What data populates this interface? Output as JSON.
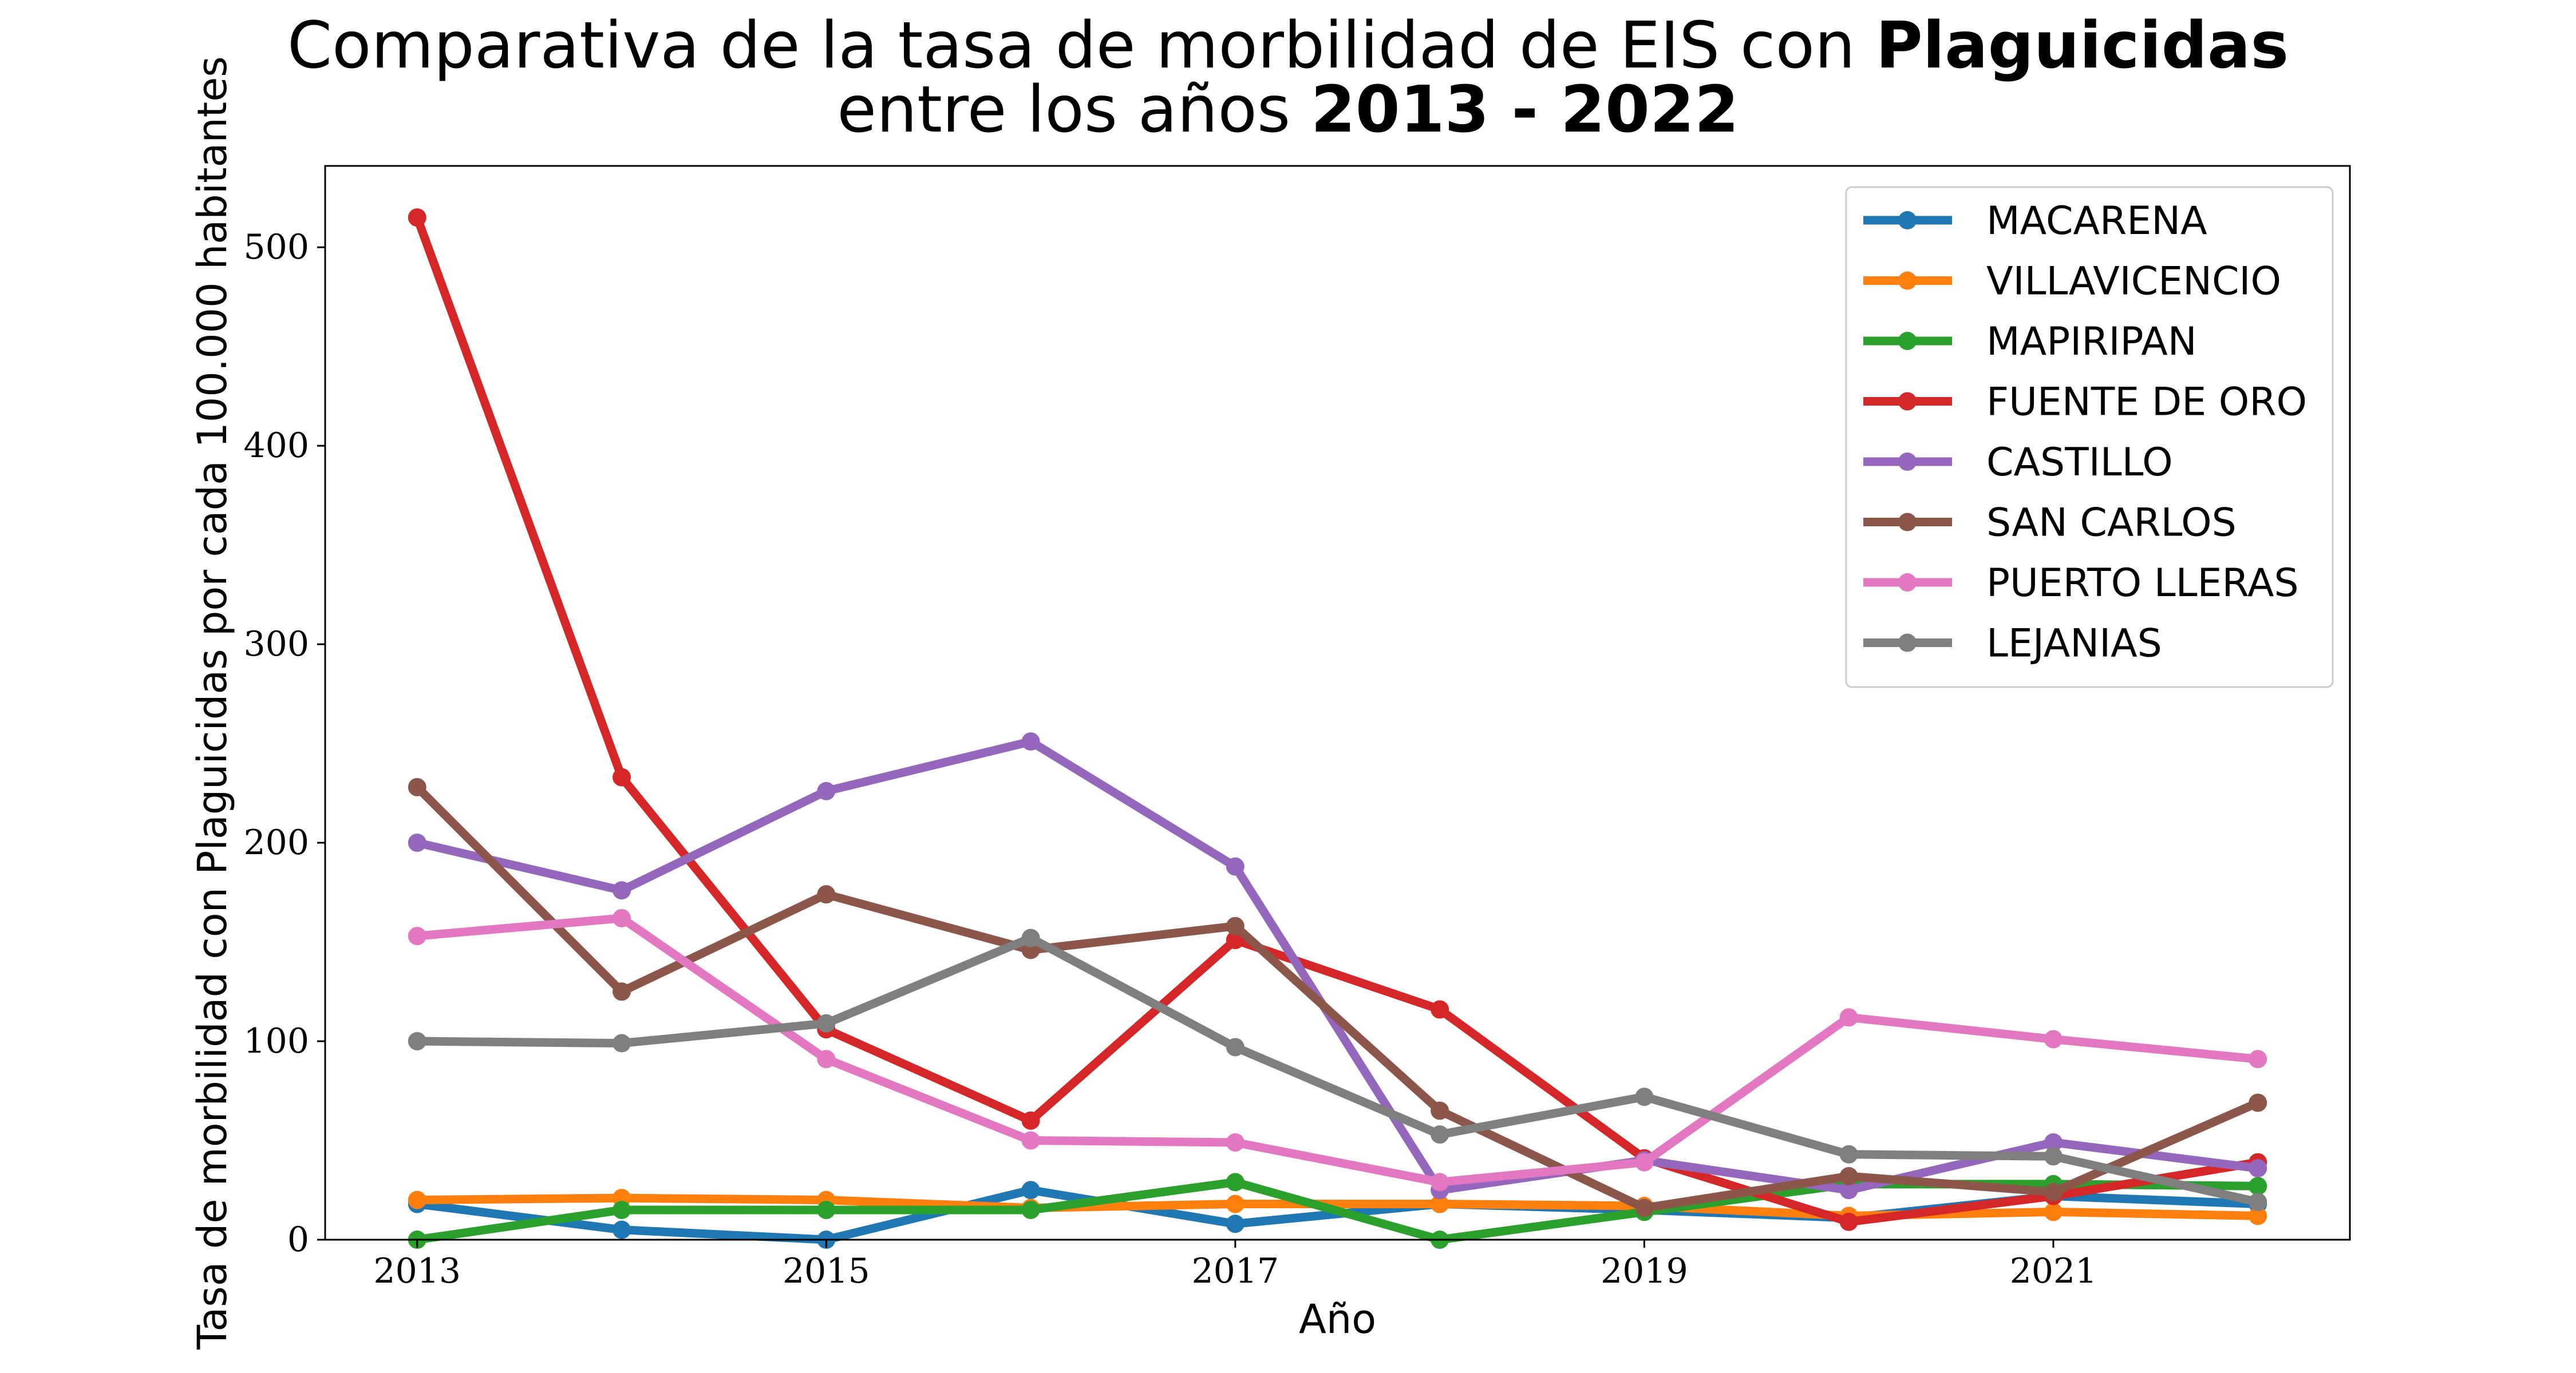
{
  "chart_data": {
    "type": "line",
    "title_line1_prefix": "Comparativa de la tasa de morbilidad de EIS con ",
    "title_line1_bold": "Plaguicidas",
    "title_line2_prefix": "entre los años ",
    "title_line2_bold": "2013 - 2022",
    "xlabel": "Año",
    "ylabel": "Tasa de morbilidad con Plaguicidas por cada 100.000 habitantes",
    "x": [
      2013,
      2014,
      2015,
      2016,
      2017,
      2018,
      2019,
      2020,
      2021,
      2022
    ],
    "xticks": [
      "2013",
      "2015",
      "2017",
      "2019",
      "2021"
    ],
    "yticks": [
      "0",
      "100",
      "200",
      "300",
      "400",
      "500"
    ],
    "xlim": [
      2012.55,
      2022.45
    ],
    "ylim": [
      0,
      541
    ],
    "grid": false,
    "legend_position": "top-right",
    "series": [
      {
        "name": "MACARENA",
        "color": "#1f77b4",
        "values": [
          18,
          5,
          0,
          25,
          8,
          18,
          15,
          11,
          22,
          18
        ]
      },
      {
        "name": "VILLAVICENCIO",
        "color": "#ff7f0e",
        "values": [
          20,
          21,
          20,
          16,
          18,
          18,
          17,
          12,
          14,
          12
        ]
      },
      {
        "name": "MAPIRIPAN",
        "color": "#2ca02c",
        "values": [
          0,
          15,
          15,
          15,
          29,
          0,
          14,
          28,
          28,
          27
        ]
      },
      {
        "name": "FUENTE DE ORO",
        "color": "#d62728",
        "values": [
          515,
          233,
          106,
          60,
          151,
          116,
          41,
          9,
          22,
          39
        ]
      },
      {
        "name": "CASTILLO",
        "color": "#9467bd",
        "values": [
          200,
          176,
          226,
          251,
          188,
          25,
          40,
          25,
          49,
          36
        ]
      },
      {
        "name": "SAN CARLOS",
        "color": "#8c564b",
        "values": [
          228,
          125,
          174,
          146,
          158,
          65,
          16,
          32,
          24,
          69
        ]
      },
      {
        "name": "PUERTO LLERAS",
        "color": "#e377c2",
        "values": [
          153,
          162,
          91,
          50,
          49,
          29,
          39,
          112,
          101,
          91
        ]
      },
      {
        "name": "LEJANIAS",
        "color": "#7f7f7f",
        "values": [
          100,
          99,
          109,
          152,
          97,
          53,
          72,
          43,
          42,
          19
        ]
      }
    ]
  }
}
